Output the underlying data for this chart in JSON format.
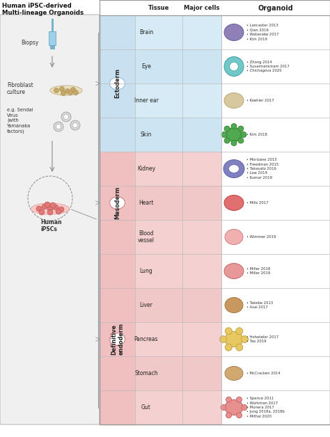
{
  "title_line1": "Human iPSC-derived",
  "title_line2": "Multi-lineage Organoids",
  "header_tissue": "Tissue",
  "header_cells": "Major cells",
  "header_organoid": "Organoid",
  "rows": [
    {
      "tissue": "Brain",
      "layer": 0,
      "refs": [
        "Lancaster 2013",
        "Qian 2016",
        "Watanabe 2017",
        "Kim 2019"
      ]
    },
    {
      "tissue": "Eye",
      "layer": 0,
      "refs": [
        "Zhong 2014",
        "Susaimanickam 2017",
        "Chichagova 2020"
      ]
    },
    {
      "tissue": "Inner ear",
      "layer": 0,
      "refs": [
        "Koehler 2017"
      ]
    },
    {
      "tissue": "Skin",
      "layer": 0,
      "refs": [
        "Kim 2018"
      ]
    },
    {
      "tissue": "Kidney",
      "layer": 1,
      "refs": [
        "Morizane 2015",
        "Freedman 2015",
        "Takasato 2016",
        "Low 2019",
        "Kumar 2019"
      ]
    },
    {
      "tissue": "Heart",
      "layer": 1,
      "refs": [
        "Mills 2017"
      ]
    },
    {
      "tissue": "Blood\nvessel",
      "layer": 1,
      "refs": [
        "Wimmer 2019"
      ]
    },
    {
      "tissue": "Lung",
      "layer": 2,
      "refs": [
        "Miller 2018",
        "Miller 2019"
      ]
    },
    {
      "tissue": "Liver",
      "layer": 2,
      "refs": [
        "Takebe 2013",
        "Asai 2017"
      ]
    },
    {
      "tissue": "Pancreas",
      "layer": 2,
      "refs": [
        "Hohwieler 2017",
        "Tao 2019"
      ]
    },
    {
      "tissue": "Stomach",
      "layer": 2,
      "refs": [
        "McCracken 2014"
      ]
    },
    {
      "tissue": "Gut",
      "layer": 2,
      "refs": [
        "Spence 2011",
        "Workman 2017",
        "Munera 2017",
        "Jung 2018a, 2018b",
        "Mithal 2020"
      ]
    }
  ],
  "layers": [
    {
      "name": "Ectoderm",
      "rows": [
        0,
        3
      ],
      "bg": "#cce4f0",
      "label_bg": "#cce4f0",
      "cell_color": "#7ab8d4"
    },
    {
      "name": "Mesoderm",
      "rows": [
        4,
        6
      ],
      "bg": "#f5caca",
      "label_bg": "#f5caca",
      "cell_color": "#d47a7a"
    },
    {
      "name": "Definitive\nendoderm",
      "rows": [
        7,
        11
      ],
      "bg": "#f5caca",
      "label_bg": "#f5caca",
      "cell_color": "#d47a7a"
    }
  ],
  "row_colors_ecto": [
    "#d4e9f5",
    "#c8e2f2"
  ],
  "row_colors_meso": [
    "#f5d5d5",
    "#f0cccc"
  ],
  "row_colors_endo": [
    "#f5d5d5",
    "#f0cccc"
  ],
  "white": "#ffffff",
  "light_gray": "#f2f2f2",
  "border": "#cccccc",
  "dark_text": "#222222",
  "ref_text": "#333333"
}
